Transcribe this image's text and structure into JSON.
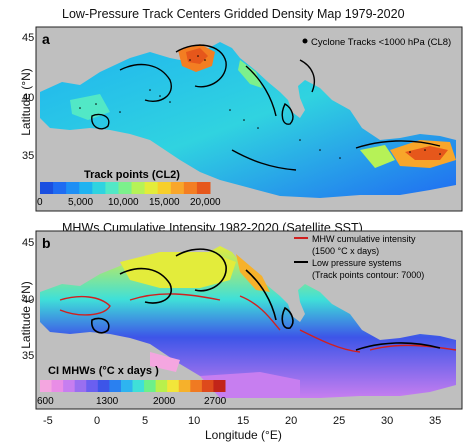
{
  "panel_a": {
    "title": "Low-Pressure Track Centers Gridded Density Map 1979-2020",
    "letter": "a",
    "legend": "Cyclone Tracks <1000 hPa (CL8)",
    "colorbar_title": "Track points (CL2)",
    "colorbar_ticks": [
      "0",
      "5,000",
      "10,000",
      "15,000",
      "20,000"
    ],
    "colorbar_colors": [
      "#1a4fe0",
      "#1f6cf2",
      "#1e8ff5",
      "#1fb3f0",
      "#30d3e0",
      "#52e8c6",
      "#7cf08c",
      "#b6f257",
      "#e3ec3b",
      "#f7cf2b",
      "#f8a62a",
      "#f37e22",
      "#e6571b"
    ],
    "ylabel": "Latitude (°N)",
    "lat_ticks": [
      "45",
      "40",
      "35"
    ]
  },
  "panel_b": {
    "title": "MHWs Cumulative Intensity 1982-2020 (Satellite SST)",
    "letter": "b",
    "legend_red": "MHW cumulative intensity",
    "legend_red_sub": "(1500 °C x days)",
    "legend_black": "Low pressure systems",
    "legend_black_sub": "(Track points contour: 7000)",
    "colorbar_title": "CI MHWs (°C x days )",
    "colorbar_ticks": [
      "600",
      "1300",
      "2000",
      "2700"
    ],
    "colorbar_colors": [
      "#f4a6e0",
      "#e98de6",
      "#c77ef0",
      "#9a6ff0",
      "#6a5ff0",
      "#3d55e8",
      "#2a80f0",
      "#2eb4f0",
      "#3fe0d8",
      "#6cf08a",
      "#b9f04c",
      "#f2e63a",
      "#f6b12b",
      "#f07a22",
      "#de4a1c",
      "#c22419"
    ],
    "ylabel": "Latitude (°N)",
    "lat_ticks": [
      "45",
      "40",
      "35"
    ]
  },
  "xlabel": "Longitude (°E)",
  "lon_ticks": [
    "-5",
    "0",
    "5",
    "10",
    "15",
    "20",
    "25",
    "30",
    "35"
  ],
  "colors": {
    "land": "#bfbfbf",
    "sea_a": "#2ec6ef",
    "sea_b": "#3a5be3",
    "contour_red": "#d02020",
    "contour_black": "#000000"
  }
}
